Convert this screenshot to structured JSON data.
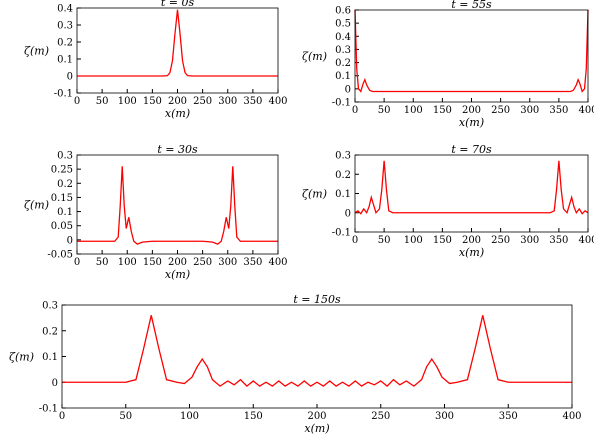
{
  "chart_data": [
    {
      "type": "line",
      "title": "t = 0s",
      "xlabel": "x(m)",
      "ylabel": "ζ(m)",
      "color": "#ff0000",
      "x": [
        0,
        100,
        170,
        180,
        185,
        190,
        195,
        200,
        205,
        210,
        215,
        220,
        230,
        300,
        400
      ],
      "values": [
        0,
        0,
        0,
        0.002,
        0.02,
        0.09,
        0.25,
        0.39,
        0.25,
        0.09,
        0.02,
        0.002,
        0,
        0,
        0
      ],
      "xlim": [
        0,
        400
      ],
      "xticks": [
        0,
        50,
        100,
        150,
        200,
        250,
        300,
        350,
        400
      ],
      "ylim": [
        -0.1,
        0.4
      ],
      "yticks": [
        -0.1,
        0,
        0.1,
        0.2,
        0.3,
        0.4
      ]
    },
    {
      "type": "line",
      "title": "t = 55s",
      "xlabel": "x(m)",
      "ylabel": "ζ(m)",
      "color": "#ff0000",
      "x": [
        0,
        3,
        6,
        10,
        14,
        17,
        20,
        25,
        30,
        50,
        100,
        200,
        300,
        350,
        370,
        375,
        380,
        383,
        386,
        390,
        394,
        397,
        400
      ],
      "values": [
        0.6,
        0.15,
        0.0,
        -0.02,
        0.04,
        0.07,
        0.03,
        -0.01,
        -0.02,
        -0.02,
        -0.02,
        -0.02,
        -0.02,
        -0.02,
        -0.02,
        -0.01,
        0.03,
        0.07,
        0.04,
        -0.02,
        0.0,
        0.15,
        0.6
      ],
      "xlim": [
        0,
        400
      ],
      "xticks": [
        0,
        50,
        100,
        150,
        200,
        250,
        300,
        350,
        400
      ],
      "ylim": [
        -0.1,
        0.6
      ],
      "yticks": [
        -0.1,
        0,
        0.1,
        0.2,
        0.3,
        0.4,
        0.5,
        0.6
      ]
    },
    {
      "type": "line",
      "title": "t = 30s",
      "xlabel": "x(m)",
      "ylabel": "ζ(m)",
      "color": "#ff0000",
      "x": [
        0,
        75,
        82,
        86,
        90,
        94,
        98,
        103,
        108,
        113,
        120,
        130,
        150,
        200,
        250,
        270,
        280,
        287,
        292,
        297,
        302,
        306,
        310,
        314,
        318,
        325,
        400
      ],
      "values": [
        -0.005,
        -0.005,
        0.01,
        0.12,
        0.26,
        0.12,
        0.04,
        0.08,
        0.03,
        -0.005,
        -0.015,
        -0.008,
        -0.005,
        -0.005,
        -0.005,
        -0.008,
        -0.015,
        -0.005,
        0.03,
        0.08,
        0.04,
        0.12,
        0.26,
        0.12,
        0.01,
        -0.005,
        -0.005
      ],
      "xlim": [
        0,
        400
      ],
      "xticks": [
        0,
        50,
        100,
        150,
        200,
        250,
        300,
        350,
        400
      ],
      "ylim": [
        -0.05,
        0.3
      ],
      "yticks": [
        -0.05,
        0,
        0.05,
        0.1,
        0.15,
        0.2,
        0.25,
        0.3
      ]
    },
    {
      "type": "line",
      "title": "t = 70s",
      "xlabel": "x(m)",
      "ylabel": "ζ(m)",
      "color": "#ff0000",
      "x": [
        0,
        5,
        10,
        15,
        20,
        24,
        28,
        32,
        36,
        42,
        46,
        50,
        54,
        58,
        65,
        100,
        200,
        300,
        335,
        342,
        346,
        350,
        354,
        358,
        364,
        368,
        372,
        376,
        380,
        385,
        390,
        395,
        400
      ],
      "values": [
        0,
        0.01,
        -0.005,
        0.02,
        0.0,
        0.03,
        0.08,
        0.04,
        0.0,
        0.02,
        0.12,
        0.27,
        0.12,
        0.01,
        0,
        0,
        0,
        0,
        0,
        0.01,
        0.12,
        0.27,
        0.12,
        0.02,
        0.0,
        0.04,
        0.08,
        0.03,
        0.0,
        0.02,
        -0.005,
        0.01,
        0
      ],
      "xlim": [
        0,
        400
      ],
      "xticks": [
        0,
        50,
        100,
        150,
        200,
        250,
        300,
        350,
        400
      ],
      "ylim": [
        -0.1,
        0.3
      ],
      "yticks": [
        -0.1,
        0,
        0.1,
        0.2,
        0.3
      ]
    },
    {
      "type": "line",
      "title": "t = 150s",
      "xlabel": "x(m)",
      "ylabel": "ζ(m)",
      "color": "#ff0000",
      "x": [
        0,
        50,
        58,
        64,
        70,
        76,
        82,
        90,
        96,
        102,
        106,
        110,
        114,
        118,
        124,
        130,
        135,
        140,
        145,
        150,
        155,
        160,
        165,
        170,
        175,
        180,
        185,
        190,
        195,
        200,
        205,
        210,
        215,
        220,
        225,
        230,
        235,
        240,
        245,
        250,
        255,
        260,
        265,
        270,
        276,
        282,
        286,
        290,
        294,
        298,
        304,
        310,
        318,
        324,
        330,
        336,
        342,
        350,
        400
      ],
      "values": [
        0,
        0,
        0.01,
        0.13,
        0.26,
        0.13,
        0.01,
        0.0,
        -0.005,
        0.02,
        0.06,
        0.09,
        0.06,
        0.01,
        -0.015,
        0.005,
        -0.01,
        0.01,
        -0.015,
        0.005,
        -0.015,
        0.0,
        -0.015,
        0.005,
        -0.015,
        0.0,
        -0.015,
        0.005,
        -0.015,
        0.0,
        -0.015,
        0.005,
        -0.015,
        0.0,
        -0.015,
        0.005,
        -0.015,
        0.0,
        -0.01,
        0.005,
        -0.015,
        0.01,
        -0.01,
        0.005,
        -0.015,
        0.01,
        0.06,
        0.09,
        0.06,
        0.02,
        -0.005,
        0.0,
        0.01,
        0.13,
        0.26,
        0.13,
        0.01,
        0,
        0
      ],
      "xlim": [
        0,
        400
      ],
      "xticks": [
        0,
        50,
        100,
        150,
        200,
        250,
        300,
        350,
        400
      ],
      "ylim": [
        -0.1,
        0.3
      ],
      "yticks": [
        -0.1,
        0,
        0.1,
        0.2,
        0.3
      ]
    }
  ]
}
